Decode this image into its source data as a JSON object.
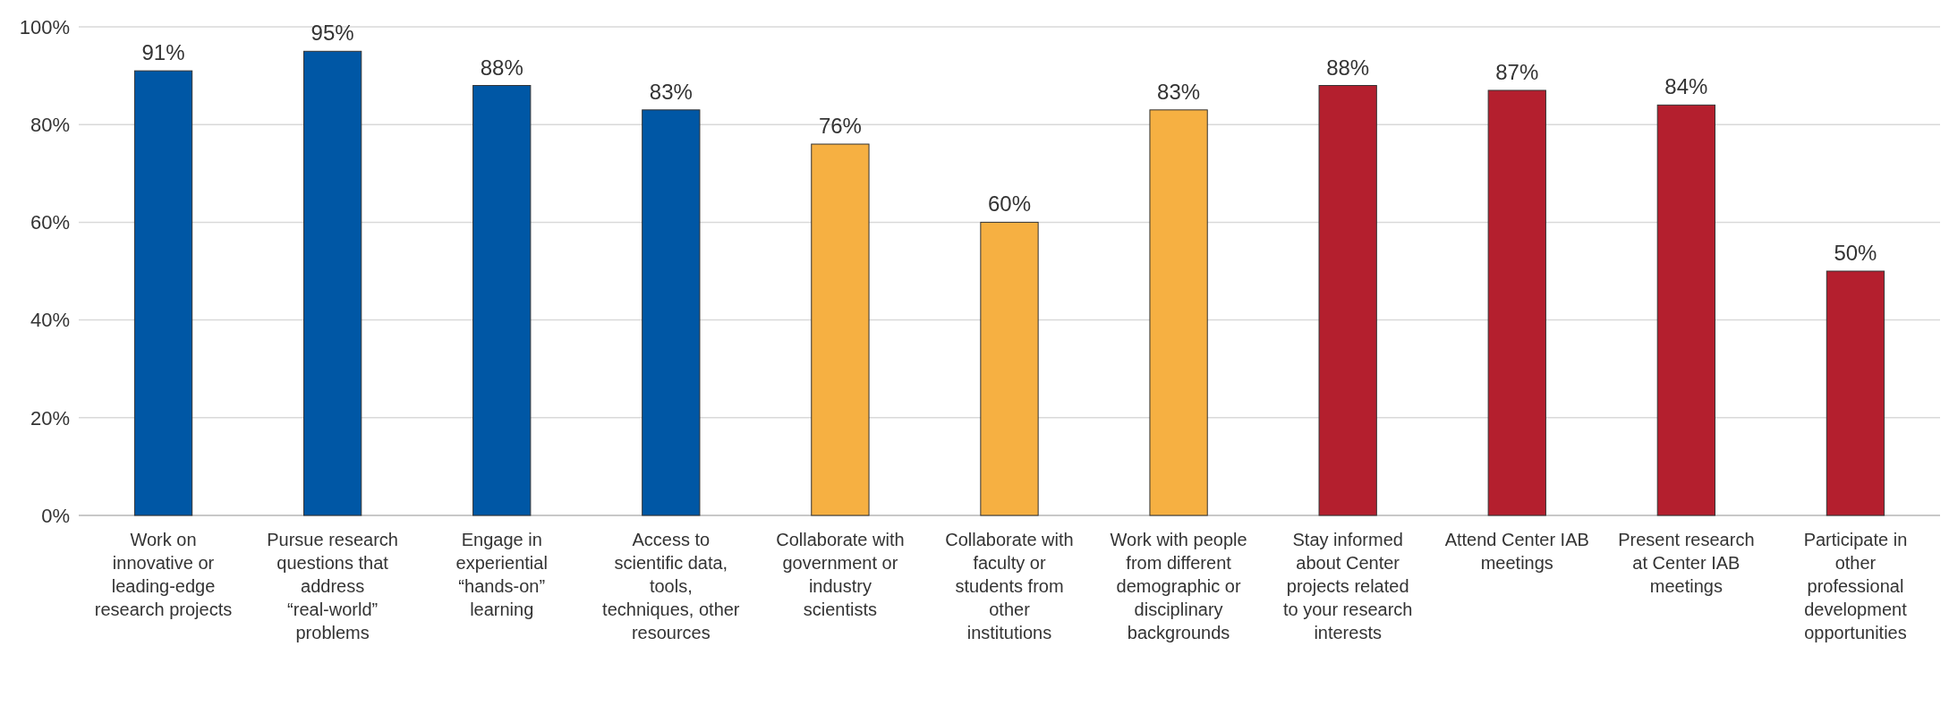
{
  "chart_data": {
    "type": "bar",
    "categories": [
      "Work on innovative or leading-edge research projects",
      "Pursue research questions that address “real-world” problems",
      "Engage in experiential “hands-on” learning",
      "Access to scientific data, tools, techniques, other resources",
      "Collaborate with government or industry scientists",
      "Collaborate with faculty or students from other institutions",
      "Work with people from different demographic or disciplinary backgrounds",
      "Stay informed about Center projects related to your research interests",
      "Attend Center IAB meetings",
      "Present research at Center IAB meetings",
      "Participate in other professional development opportunities"
    ],
    "values": [
      91,
      95,
      88,
      83,
      76,
      60,
      83,
      88,
      87,
      84,
      50
    ],
    "value_labels": [
      "91%",
      "95%",
      "88%",
      "83%",
      "76%",
      "60%",
      "83%",
      "88%",
      "87%",
      "84%",
      "50%"
    ],
    "colors": [
      "#0057a5",
      "#0057a5",
      "#0057a5",
      "#0057a5",
      "#f6b042",
      "#f6b042",
      "#f6b042",
      "#b41f2e",
      "#b41f2e",
      "#b41f2e",
      "#b41f2e"
    ],
    "ylim": [
      0,
      100
    ],
    "yticks": [
      {
        "value": 0,
        "label": "0%"
      },
      {
        "value": 20,
        "label": "20%"
      },
      {
        "value": 40,
        "label": "40%"
      },
      {
        "value": 60,
        "label": "60%"
      },
      {
        "value": 80,
        "label": "80%"
      },
      {
        "value": 100,
        "label": "100%"
      }
    ],
    "grid": "y"
  }
}
